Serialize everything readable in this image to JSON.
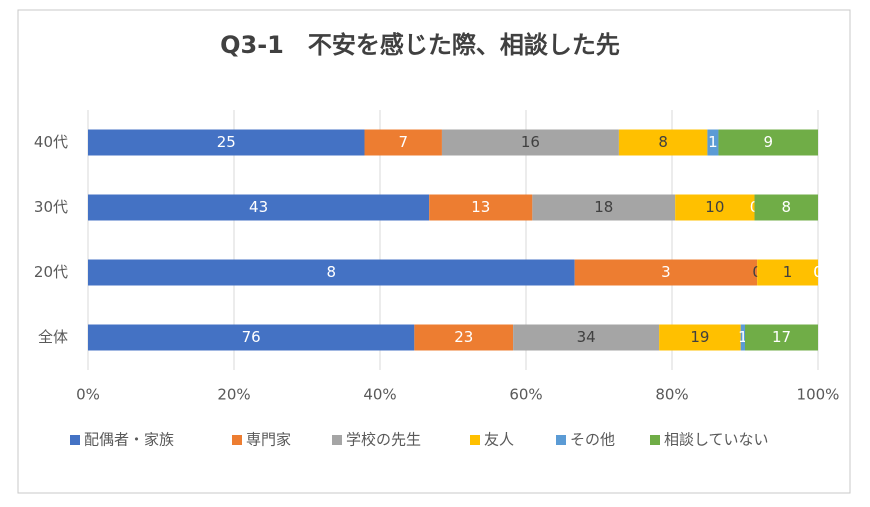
{
  "chart_data": {
    "type": "bar",
    "orientation": "horizontal",
    "stacking": "percent",
    "title": "Q3-1　不安を感じた際、相談した先",
    "categories": [
      "40代",
      "30代",
      "20代",
      "全体"
    ],
    "series": [
      {
        "name": "配偶者・家族",
        "color": "#4472c4",
        "values": [
          25,
          43,
          8,
          76
        ]
      },
      {
        "name": "専門家",
        "color": "#ed7d31",
        "values": [
          7,
          13,
          3,
          23
        ]
      },
      {
        "name": "学校の先生",
        "color": "#a5a5a5",
        "values": [
          16,
          18,
          0,
          34
        ]
      },
      {
        "name": "友人",
        "color": "#ffc000",
        "values": [
          8,
          10,
          1,
          19
        ]
      },
      {
        "name": "その他",
        "color": "#5b9bd5",
        "values": [
          1,
          0,
          0,
          1
        ]
      },
      {
        "name": "相談していない",
        "color": "#70ad47",
        "values": [
          9,
          8,
          0,
          17
        ]
      }
    ],
    "xlim": [
      0,
      100
    ],
    "xticks": [
      {
        "value": 0,
        "label": "0%"
      },
      {
        "value": 20,
        "label": "20%"
      },
      {
        "value": 40,
        "label": "40%"
      },
      {
        "value": 60,
        "label": "60%"
      },
      {
        "value": 80,
        "label": "80%"
      },
      {
        "value": 100,
        "label": "100%"
      }
    ],
    "grid": true,
    "legend": "bottom"
  }
}
